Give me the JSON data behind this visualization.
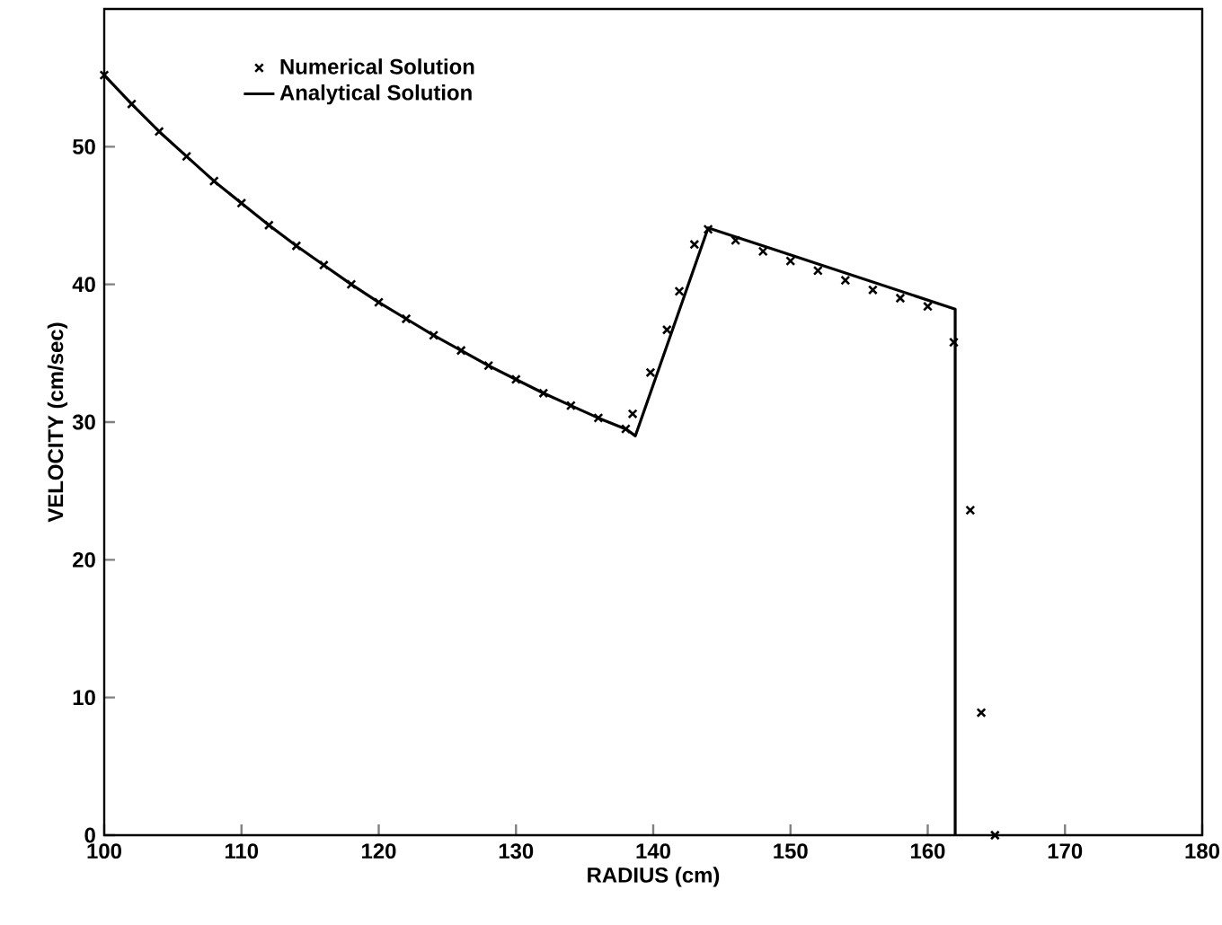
{
  "chart_data": {
    "type": "line",
    "xlabel": "RADIUS (cm)",
    "ylabel": "VELOCITY (cm/sec)",
    "xlim": [
      100,
      180
    ],
    "ylim": [
      0,
      60
    ],
    "xticks": [
      100,
      110,
      120,
      130,
      140,
      150,
      160,
      170,
      180
    ],
    "yticks": [
      0,
      10,
      20,
      30,
      40,
      50
    ],
    "legend": "top left",
    "grid": false,
    "series": [
      {
        "name": "Numerical Solution",
        "type": "scatter",
        "marker": "cross",
        "color": "#000000",
        "x": [
          100,
          102,
          104,
          106,
          108,
          110,
          112,
          114,
          116,
          118,
          120,
          122,
          124,
          126,
          128,
          130,
          132,
          134,
          136,
          138,
          138.5,
          139.8,
          141,
          141.9,
          143,
          144,
          146,
          148,
          150,
          152,
          154,
          156,
          158,
          160,
          161.9,
          163.1,
          163.9,
          164.9
        ],
        "values": [
          55.2,
          53.1,
          51.1,
          49.3,
          47.5,
          45.9,
          44.3,
          42.8,
          41.4,
          40.0,
          38.7,
          37.5,
          36.3,
          35.2,
          34.1,
          33.1,
          32.1,
          31.2,
          30.3,
          29.5,
          30.6,
          33.6,
          36.7,
          39.5,
          42.9,
          44.0,
          43.2,
          42.4,
          41.7,
          41.0,
          40.3,
          39.6,
          39.0,
          38.4,
          35.8,
          23.6,
          8.9,
          0
        ]
      },
      {
        "name": "Analytical Solution",
        "type": "line",
        "line_style": "solid",
        "color": "#000000",
        "x": [
          100,
          102,
          104,
          106,
          108,
          110,
          112,
          114,
          116,
          118,
          120,
          122,
          124,
          126,
          128,
          130,
          132,
          134,
          136,
          138,
          138.7,
          144,
          148,
          162,
          162
        ],
        "values": [
          55.2,
          53.1,
          51.1,
          49.3,
          47.5,
          45.9,
          44.3,
          42.8,
          41.4,
          40.0,
          38.7,
          37.5,
          36.3,
          35.2,
          34.1,
          33.1,
          32.1,
          31.2,
          30.3,
          29.5,
          29.0,
          44.1,
          42.8,
          38.2,
          0
        ]
      }
    ]
  }
}
